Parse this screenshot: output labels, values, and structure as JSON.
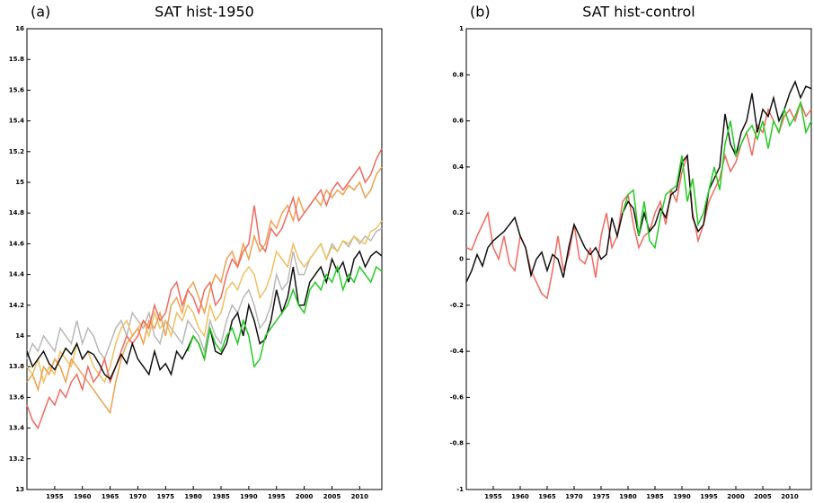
{
  "chart_data": [
    {
      "type": "line",
      "label": "(a)",
      "title": "SAT hist-1950",
      "x": [
        1950,
        1951,
        1952,
        1953,
        1954,
        1955,
        1956,
        1957,
        1958,
        1959,
        1960,
        1961,
        1962,
        1963,
        1964,
        1965,
        1966,
        1967,
        1968,
        1969,
        1970,
        1971,
        1972,
        1973,
        1974,
        1975,
        1976,
        1977,
        1978,
        1979,
        1980,
        1981,
        1982,
        1983,
        1984,
        1985,
        1986,
        1987,
        1988,
        1989,
        1990,
        1991,
        1992,
        1993,
        1994,
        1995,
        1996,
        1997,
        1998,
        1999,
        2000,
        2001,
        2002,
        2003,
        2004,
        2005,
        2006,
        2007,
        2008,
        2009,
        2010,
        2011,
        2012,
        2013,
        2014
      ],
      "xlim": [
        1950,
        2014
      ],
      "xticks": [
        1955,
        1960,
        1965,
        1970,
        1975,
        1980,
        1985,
        1990,
        1995,
        2000,
        2005,
        2010
      ],
      "ylim": [
        13,
        16
      ],
      "yticks": [
        13,
        13.2,
        13.4,
        13.6,
        13.8,
        14,
        14.2,
        14.4,
        14.6,
        14.8,
        15,
        15.2,
        15.4,
        15.6,
        15.8,
        16
      ],
      "series": [
        {
          "color": "#b8b8b8",
          "values": [
            13.85,
            13.95,
            13.9,
            14.0,
            13.95,
            13.9,
            14.05,
            14.0,
            13.95,
            14.1,
            13.95,
            14.05,
            14.0,
            13.9,
            13.85,
            13.95,
            14.05,
            14.1,
            14.0,
            14.15,
            14.1,
            14.05,
            14.15,
            14.0,
            13.95,
            14.1,
            14.05,
            14.0,
            13.95,
            14.1,
            14.05,
            14.0,
            13.9,
            14.1,
            14.0,
            13.95,
            14.1,
            14.2,
            14.15,
            14.25,
            14.3,
            14.2,
            14.05,
            14.1,
            14.2,
            14.4,
            14.3,
            14.35,
            14.55,
            14.4,
            14.4,
            14.5,
            14.55,
            14.6,
            14.5,
            14.6,
            14.55,
            14.62,
            14.58,
            14.65,
            14.6,
            14.65,
            14.62,
            14.68,
            14.7
          ]
        },
        {
          "color": "#f0c060",
          "values": [
            13.8,
            13.75,
            13.85,
            13.7,
            13.8,
            13.75,
            13.9,
            13.85,
            13.8,
            13.95,
            13.85,
            13.9,
            13.8,
            13.75,
            13.7,
            13.8,
            13.95,
            14.05,
            14.1,
            14.0,
            14.05,
            14.1,
            14.0,
            14.15,
            14.05,
            14.1,
            14.0,
            14.15,
            14.1,
            14.2,
            14.15,
            14.05,
            14.0,
            14.2,
            14.1,
            14.15,
            14.3,
            14.35,
            14.3,
            14.4,
            14.45,
            14.4,
            14.25,
            14.3,
            14.4,
            14.55,
            14.5,
            14.45,
            14.6,
            14.5,
            14.45,
            14.5,
            14.55,
            14.6,
            14.5,
            14.58,
            14.55,
            14.62,
            14.6,
            14.65,
            14.62,
            14.6,
            14.68,
            14.7,
            14.75
          ]
        },
        {
          "color": "#f0a050",
          "values": [
            13.7,
            13.75,
            13.65,
            13.8,
            13.75,
            13.85,
            13.8,
            13.7,
            13.85,
            13.8,
            13.75,
            13.7,
            13.65,
            13.6,
            13.55,
            13.5,
            13.7,
            13.85,
            13.95,
            14.0,
            14.05,
            13.95,
            14.1,
            14.05,
            14.15,
            14.0,
            14.2,
            14.25,
            14.15,
            14.3,
            14.35,
            14.25,
            14.15,
            14.3,
            14.4,
            14.35,
            14.5,
            14.55,
            14.45,
            14.6,
            14.5,
            14.65,
            14.55,
            14.6,
            14.75,
            14.7,
            14.8,
            14.85,
            14.75,
            14.9,
            14.8,
            14.85,
            14.9,
            14.85,
            14.95,
            14.9,
            14.95,
            14.92,
            14.98,
            14.95,
            15.0,
            14.9,
            14.95,
            15.05,
            15.1
          ]
        },
        {
          "color": "#f06a60",
          "values": [
            13.55,
            13.45,
            13.4,
            13.5,
            13.6,
            13.55,
            13.65,
            13.6,
            13.7,
            13.75,
            13.65,
            13.8,
            13.7,
            13.75,
            13.85,
            13.7,
            13.8,
            13.9,
            14.0,
            13.95,
            14.0,
            14.1,
            14.05,
            14.2,
            14.1,
            14.15,
            14.3,
            14.35,
            14.2,
            14.3,
            14.25,
            14.15,
            14.3,
            14.35,
            14.2,
            14.25,
            14.4,
            14.5,
            14.45,
            14.55,
            14.6,
            14.85,
            14.6,
            14.55,
            14.7,
            14.65,
            14.7,
            14.8,
            14.9,
            14.75,
            14.8,
            14.85,
            14.9,
            14.95,
            14.85,
            14.95,
            15.0,
            14.95,
            15.0,
            15.05,
            15.1,
            15.0,
            15.05,
            15.15,
            15.22
          ]
        },
        {
          "color": "#111111",
          "values": [
            13.9,
            13.8,
            13.85,
            13.9,
            13.82,
            13.78,
            13.85,
            13.92,
            13.88,
            13.95,
            13.85,
            13.9,
            13.88,
            13.82,
            13.75,
            13.72,
            13.8,
            13.88,
            13.82,
            13.95,
            13.85,
            13.8,
            13.75,
            13.9,
            13.78,
            13.82,
            13.75,
            13.9,
            13.85,
            13.92,
            14.0,
            13.95,
            13.85,
            14.05,
            13.9,
            13.88,
            13.95,
            14.1,
            14.15,
            14.0,
            14.2,
            14.1,
            13.95,
            13.98,
            14.1,
            14.3,
            14.15,
            14.25,
            14.45,
            14.2,
            14.2,
            14.35,
            14.4,
            14.45,
            14.35,
            14.5,
            14.42,
            14.48,
            14.35,
            14.5,
            14.55,
            14.45,
            14.52,
            14.55,
            14.52
          ]
        },
        {
          "color": "#22cc22",
          "values": [
            null,
            null,
            null,
            null,
            null,
            null,
            null,
            null,
            null,
            null,
            null,
            null,
            null,
            null,
            null,
            null,
            null,
            null,
            null,
            null,
            null,
            null,
            null,
            null,
            null,
            null,
            null,
            null,
            null,
            13.9,
            14.0,
            13.95,
            13.85,
            14.05,
            13.95,
            13.9,
            14.0,
            14.05,
            13.95,
            14.1,
            14.0,
            13.8,
            13.85,
            14.0,
            14.05,
            14.1,
            14.15,
            14.2,
            14.3,
            14.2,
            14.15,
            14.3,
            14.35,
            14.3,
            14.4,
            14.35,
            14.45,
            14.3,
            14.4,
            14.35,
            14.45,
            14.4,
            14.35,
            14.45,
            14.42
          ]
        }
      ]
    },
    {
      "type": "line",
      "label": "(b)",
      "title": "SAT hist-control",
      "x": [
        1950,
        1951,
        1952,
        1953,
        1954,
        1955,
        1956,
        1957,
        1958,
        1959,
        1960,
        1961,
        1962,
        1963,
        1964,
        1965,
        1966,
        1967,
        1968,
        1969,
        1970,
        1971,
        1972,
        1973,
        1974,
        1975,
        1976,
        1977,
        1978,
        1979,
        1980,
        1981,
        1982,
        1983,
        1984,
        1985,
        1986,
        1987,
        1988,
        1989,
        1990,
        1991,
        1992,
        1993,
        1994,
        1995,
        1996,
        1997,
        1998,
        1999,
        2000,
        2001,
        2002,
        2003,
        2004,
        2005,
        2006,
        2007,
        2008,
        2009,
        2010,
        2011,
        2012,
        2013,
        2014
      ],
      "xlim": [
        1950,
        2014
      ],
      "xticks": [
        1955,
        1960,
        1965,
        1970,
        1975,
        1980,
        1985,
        1990,
        1995,
        2000,
        2005,
        2010
      ],
      "ylim": [
        -1,
        1
      ],
      "yticks": [
        -1,
        -0.8,
        -0.6,
        -0.4,
        -0.2,
        0,
        0.2,
        0.4,
        0.6,
        0.8,
        1
      ],
      "series": [
        {
          "color": "#f06a60",
          "values": [
            0.05,
            0.04,
            0.1,
            0.15,
            0.2,
            0.05,
            0.0,
            0.1,
            -0.02,
            -0.05,
            0.1,
            0.05,
            -0.05,
            -0.1,
            -0.15,
            -0.17,
            -0.05,
            0.1,
            -0.05,
            0.02,
            0.15,
            0.0,
            -0.02,
            0.05,
            -0.08,
            0.1,
            0.2,
            0.05,
            0.1,
            0.25,
            0.28,
            0.15,
            0.05,
            0.1,
            0.12,
            0.2,
            0.25,
            0.15,
            0.3,
            0.25,
            0.38,
            0.45,
            0.2,
            0.08,
            0.15,
            0.25,
            0.3,
            0.35,
            0.45,
            0.38,
            0.42,
            0.5,
            0.55,
            0.45,
            0.58,
            0.55,
            0.65,
            0.6,
            0.55,
            0.62,
            0.65,
            0.6,
            0.68,
            0.62,
            0.65
          ]
        },
        {
          "color": "#111111",
          "values": [
            -0.1,
            -0.05,
            0.02,
            -0.03,
            0.05,
            0.08,
            0.1,
            0.12,
            0.15,
            0.18,
            0.1,
            0.05,
            -0.07,
            0.0,
            0.03,
            -0.05,
            0.02,
            0.0,
            -0.08,
            0.05,
            0.15,
            0.1,
            0.05,
            0.02,
            0.05,
            0.0,
            0.02,
            0.18,
            0.1,
            0.2,
            0.25,
            0.22,
            0.1,
            0.2,
            0.12,
            0.15,
            0.22,
            0.18,
            0.28,
            0.3,
            0.42,
            0.45,
            0.18,
            0.12,
            0.15,
            0.3,
            0.35,
            0.4,
            0.63,
            0.5,
            0.45,
            0.55,
            0.6,
            0.72,
            0.55,
            0.65,
            0.62,
            0.7,
            0.6,
            0.65,
            0.72,
            0.77,
            0.7,
            0.75,
            0.74
          ]
        },
        {
          "color": "#22cc22",
          "values": [
            null,
            null,
            null,
            null,
            null,
            null,
            null,
            null,
            null,
            null,
            null,
            null,
            null,
            null,
            null,
            null,
            null,
            null,
            null,
            null,
            null,
            null,
            null,
            null,
            null,
            null,
            null,
            null,
            null,
            0.2,
            0.28,
            0.3,
            0.1,
            0.25,
            0.08,
            0.05,
            0.18,
            0.28,
            0.3,
            0.32,
            0.45,
            0.25,
            0.35,
            0.15,
            0.2,
            0.3,
            0.4,
            0.3,
            0.5,
            0.6,
            0.45,
            0.5,
            0.55,
            0.58,
            0.52,
            0.6,
            0.48,
            0.6,
            0.55,
            0.65,
            0.58,
            0.62,
            0.68,
            0.55,
            0.6
          ]
        }
      ]
    }
  ]
}
